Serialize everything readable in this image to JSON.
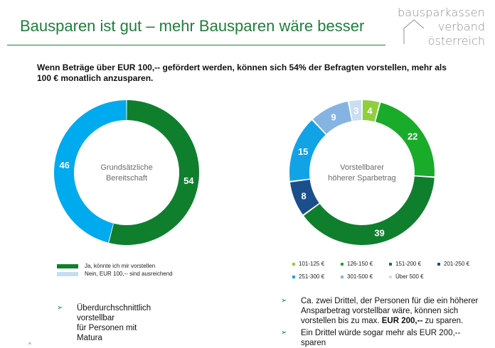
{
  "header": {
    "title": "Bausparen ist gut – mehr Bausparen wäre besser",
    "logo_line1": "bausparkassen",
    "logo_line2": "verband",
    "logo_line3": "österreich"
  },
  "subtitle": "Wenn Beträge über EUR 100,-- gefördert werden, können sich 54% der Befragten vorstellen, mehr als 100 € monatlich anzusparen.",
  "chart_data": [
    {
      "type": "pie",
      "title": "",
      "center_label_1": "Grundsätzliche",
      "center_label_2": "Bereitschaft",
      "slices": [
        {
          "label": "Ja, könnte ich mir vorstellen",
          "value": 54,
          "color": "#0f7f2e"
        },
        {
          "label": "Nein, EUR 100,-- sind ausreichend",
          "value": 46,
          "color": "#00aaee"
        }
      ],
      "legend": [
        {
          "label": "Ja, könnte ich mir vorstellen",
          "color": "#0f7f2e"
        },
        {
          "label": "Nein, EUR 100,-- sind ausreichend",
          "color": "#c5ddf0"
        }
      ]
    },
    {
      "type": "pie",
      "title": "",
      "center_label_1": "Vorstellbarer",
      "center_label_2": "höherer Sparbetrag",
      "slices": [
        {
          "label": "101-125 €",
          "value": 4,
          "color": "#8fcf3c"
        },
        {
          "label": "126-150 €",
          "value": 22,
          "color": "#1aab2b"
        },
        {
          "label": "151-200 €",
          "value": 39,
          "color": "#0f7f2e"
        },
        {
          "label": "201-250 €",
          "value": 8,
          "color": "#1b4f8c"
        },
        {
          "label": "251-300 €",
          "value": 15,
          "color": "#12a3e6"
        },
        {
          "label": "301-500 €",
          "value": 9,
          "color": "#86b4e2"
        },
        {
          "label": "Über 500 €",
          "value": 3,
          "color": "#c9def3"
        }
      ]
    }
  ],
  "legend2": [
    {
      "label": "101-125 €",
      "color": "#8fcf3c"
    },
    {
      "label": "126-150 €",
      "color": "#1aab2b"
    },
    {
      "label": "151-200 €",
      "color": "#0f7f2e"
    },
    {
      "label": "201-250 €",
      "color": "#1b4f8c"
    },
    {
      "label": "251-300 €",
      "color": "#12a3e6"
    },
    {
      "label": "301-500 €",
      "color": "#86b4e2"
    },
    {
      "label": "Über 500 €",
      "color": "#c9def3"
    }
  ],
  "bullets_left": [
    {
      "line1": "Überdurchschnittlich vorstellbar",
      "line2": "für Personen mit Matura"
    }
  ],
  "bullets_right": [
    {
      "line1": "Ca. zwei Drittel, der Personen für die ein höherer",
      "line2": "Ansparbetrag vorstellbar wäre, können sich",
      "line3a": "vorstellen bis zu max. ",
      "line3b": "EUR 200,--",
      "line3c": " zu sparen."
    },
    {
      "line1": "Ein Drittel würde sogar mehr als EUR 200,--",
      "line2": "sparen"
    }
  ],
  "marks": {
    "arrow": "➢",
    "corner": "^"
  }
}
